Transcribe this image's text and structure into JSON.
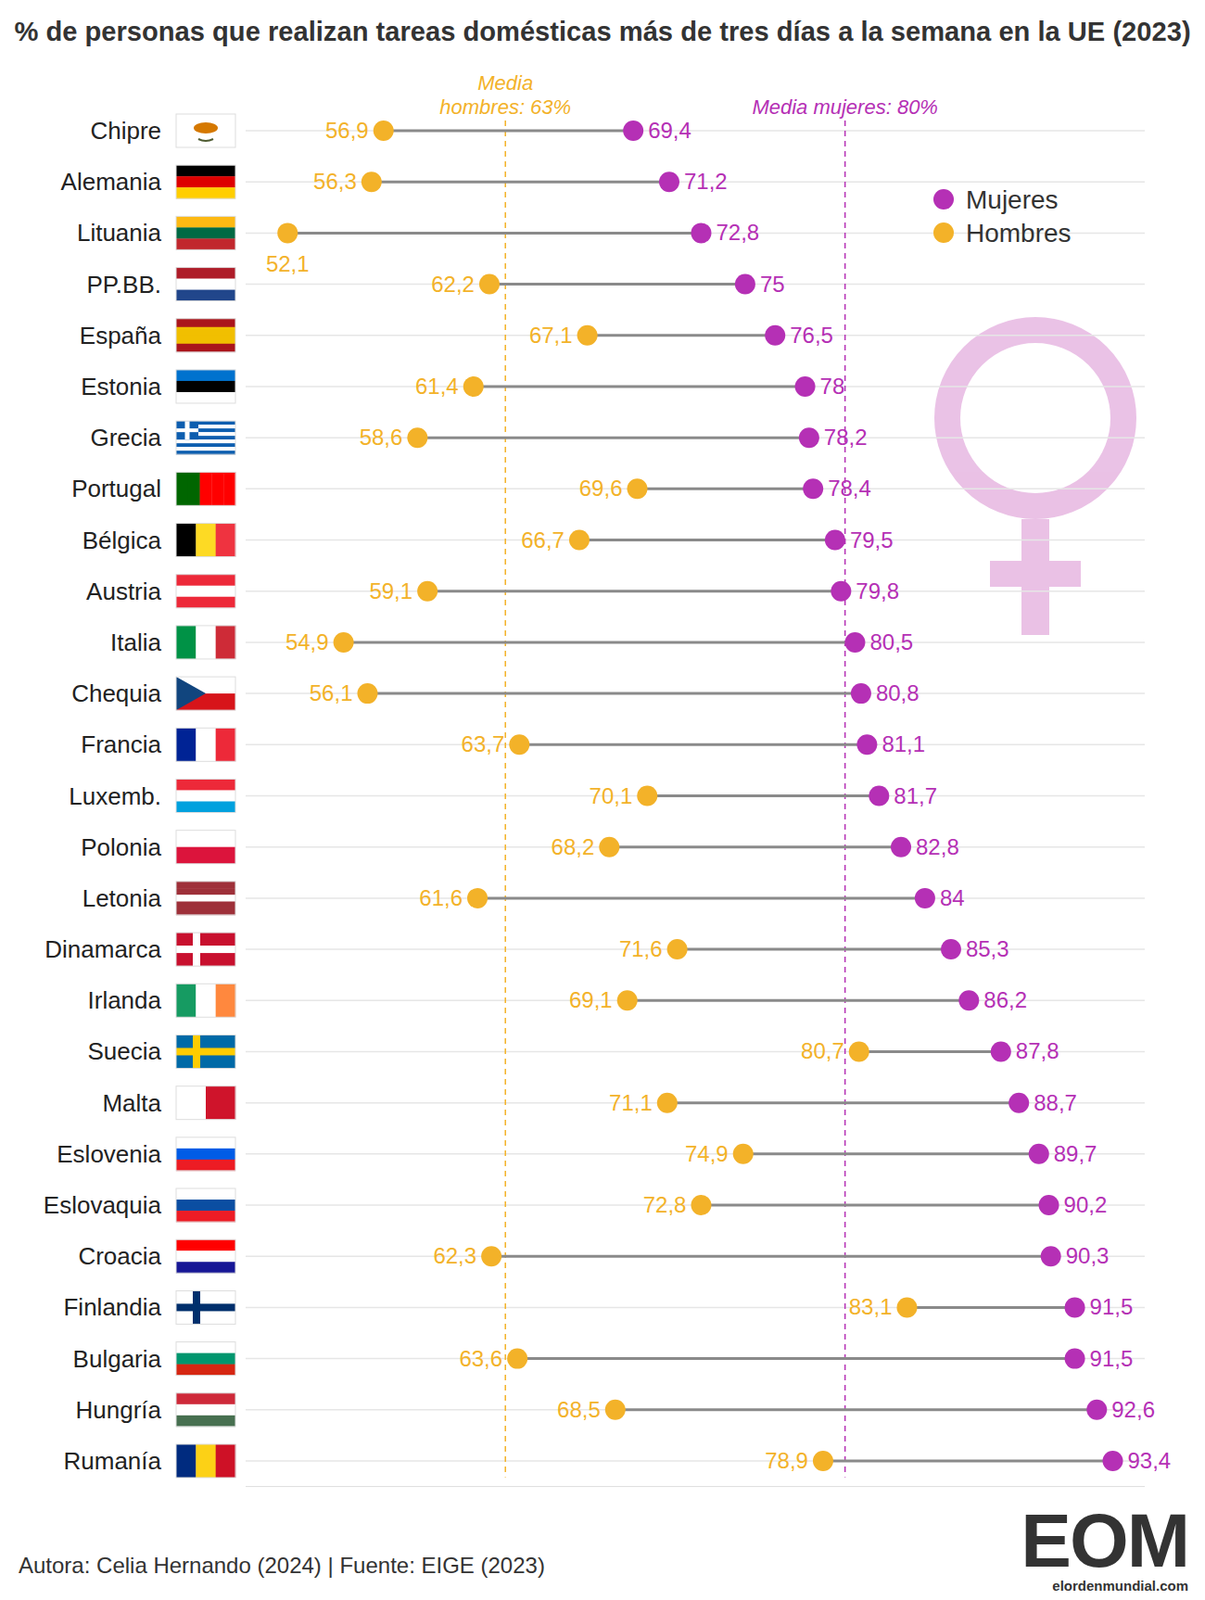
{
  "chart_data": {
    "type": "dumbbell",
    "title": "% de personas que realizan tareas domésticas más de tres días a la semana en la UE (2023)",
    "orientation": "horizontal",
    "categories": [
      "Chipre",
      "Alemania",
      "Lituania",
      "PP.BB.",
      "España",
      "Estonia",
      "Grecia",
      "Portugal",
      "Bélgica",
      "Austria",
      "Italia",
      "Chequia",
      "Francia",
      "Luxemb.",
      "Polonia",
      "Letonia",
      "Dinamarca",
      "Irlanda",
      "Suecia",
      "Malta",
      "Eslovenia",
      "Eslovaquia",
      "Croacia",
      "Finlandia",
      "Bulgaria",
      "Hungría",
      "Rumanía"
    ],
    "series": [
      {
        "name": "Mujeres",
        "color": "#b530b5",
        "values": [
          69.4,
          71.2,
          72.8,
          75,
          76.5,
          78,
          78.2,
          78.4,
          79.5,
          79.8,
          80.5,
          80.8,
          81.1,
          81.7,
          82.8,
          84,
          85.3,
          86.2,
          87.8,
          88.7,
          89.7,
          90.2,
          90.3,
          91.5,
          91.5,
          92.6,
          93.4
        ],
        "value_labels": [
          "69,4",
          "71,2",
          "72,8",
          "75",
          "76,5",
          "78",
          "78,2",
          "78,4",
          "79,5",
          "79,8",
          "80,5",
          "80,8",
          "81,1",
          "81,7",
          "82,8",
          "84",
          "85,3",
          "86,2",
          "87,8",
          "88,7",
          "89,7",
          "90,2",
          "90,3",
          "91,5",
          "91,5",
          "92,6",
          "93,4"
        ]
      },
      {
        "name": "Hombres",
        "color": "#f3b229",
        "values": [
          56.9,
          56.3,
          52.1,
          62.2,
          67.1,
          61.4,
          58.6,
          69.6,
          66.7,
          59.1,
          54.9,
          56.1,
          63.7,
          70.1,
          68.2,
          61.6,
          71.6,
          69.1,
          80.7,
          71.1,
          74.9,
          72.8,
          62.3,
          83.1,
          63.6,
          68.5,
          78.9
        ],
        "value_labels": [
          "56,9",
          "56,3",
          "52,1",
          "62,2",
          "67,1",
          "61,4",
          "58,6",
          "69,6",
          "66,7",
          "59,1",
          "54,9",
          "56,1",
          "63,7",
          "70,1",
          "68,2",
          "61,6",
          "71,6",
          "69,1",
          "80,7",
          "71,1",
          "74,9",
          "72,8",
          "62,3",
          "83,1",
          "63,6",
          "68,5",
          "78,9"
        ]
      }
    ],
    "xlim": [
      50,
      95
    ],
    "xticks": [],
    "tick_labels": "y",
    "grid": true,
    "legend": "upper right",
    "data_labels": true,
    "annotations": [
      {
        "text": "Media hombres: 63%",
        "value": 63,
        "color": "#f3b229"
      },
      {
        "text": "Media mujeres: 80%",
        "value": 80,
        "color": "#b530b5"
      }
    ],
    "source": "Autora: Celia Hernando (2024) | Fuente: EIGE (2023)",
    "logo": "EOM",
    "logo_subtitle": "elordenmundial.com"
  }
}
